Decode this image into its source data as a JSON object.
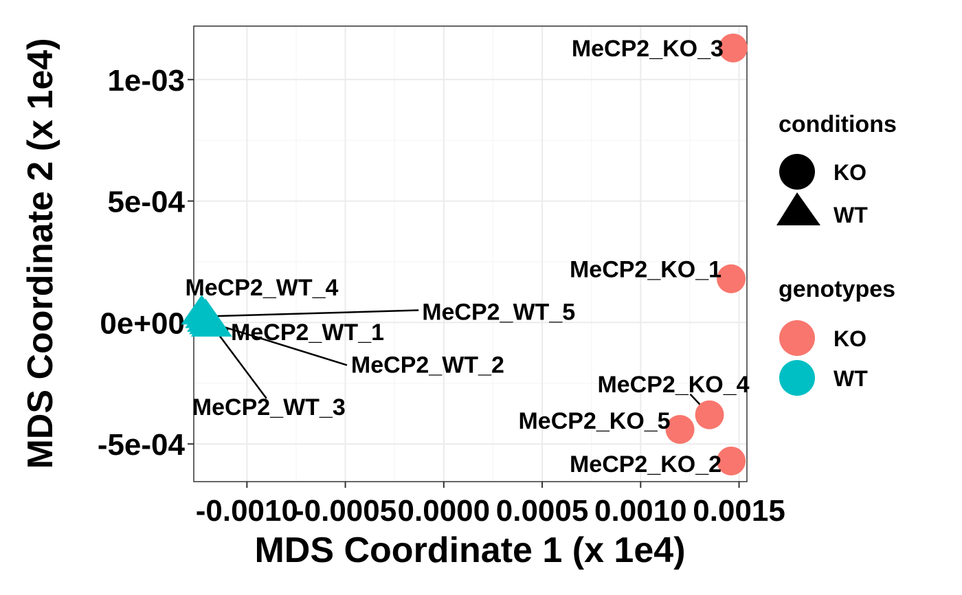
{
  "chart_data": {
    "type": "scatter",
    "xlabel": "MDS Coordinate 1 (x 1e4)",
    "ylabel": "MDS Coordinate 2 (x 1e4)",
    "xlim": [
      -0.00127,
      0.00154
    ],
    "ylim": [
      -0.000655,
      0.00122
    ],
    "x_ticks": [
      {
        "value": -0.001,
        "label": "-0.0010"
      },
      {
        "value": -0.0005,
        "label": "-0.0005"
      },
      {
        "value": 0.0,
        "label": "0.0000"
      },
      {
        "value": 0.0005,
        "label": "0.0005"
      },
      {
        "value": 0.001,
        "label": "0.0010"
      },
      {
        "value": 0.0015,
        "label": "0.0015"
      }
    ],
    "y_ticks": [
      {
        "value": 0.001,
        "label": "1e-03"
      },
      {
        "value": 0.0005,
        "label": "5e-04"
      },
      {
        "value": 0.0,
        "label": "0e+00"
      },
      {
        "value": -0.0005,
        "label": "-5e-04"
      }
    ],
    "grid": true,
    "legend_position": "right",
    "points": [
      {
        "label": "MeCP2_KO_3",
        "x": 0.00147,
        "y": 0.00113,
        "condition": "KO",
        "genotype": "KO"
      },
      {
        "label": "MeCP2_KO_1",
        "x": 0.00146,
        "y": 0.00018,
        "condition": "KO",
        "genotype": "KO"
      },
      {
        "label": "MeCP2_KO_4",
        "x": 0.00135,
        "y": -0.00038,
        "condition": "KO",
        "genotype": "KO"
      },
      {
        "label": "MeCP2_KO_5",
        "x": 0.0012,
        "y": -0.00044,
        "condition": "KO",
        "genotype": "KO"
      },
      {
        "label": "MeCP2_KO_2",
        "x": 0.00146,
        "y": -0.00057,
        "condition": "KO",
        "genotype": "KO"
      },
      {
        "label": "MeCP2_WT_4",
        "x": -0.00123,
        "y": 4e-05,
        "condition": "WT",
        "genotype": "WT"
      },
      {
        "label": "MeCP2_WT_5",
        "x": -0.00121,
        "y": 2.5e-05,
        "condition": "WT",
        "genotype": "WT"
      },
      {
        "label": "MeCP2_WT_1",
        "x": -0.0012,
        "y": 1e-05,
        "condition": "WT",
        "genotype": "WT"
      },
      {
        "label": "MeCP2_WT_2",
        "x": -0.00119,
        "y": 0.0,
        "condition": "WT",
        "genotype": "WT"
      },
      {
        "label": "MeCP2_WT_3",
        "x": -0.00118,
        "y": -1e-05,
        "condition": "WT",
        "genotype": "WT"
      }
    ],
    "legends": {
      "conditions": {
        "title": "conditions",
        "items": [
          {
            "label": "KO",
            "shape": "circle"
          },
          {
            "label": "WT",
            "shape": "triangle"
          }
        ]
      },
      "genotypes": {
        "title": "genotypes",
        "items": [
          {
            "label": "KO",
            "color": "#F8766D"
          },
          {
            "label": "WT",
            "color": "#00BFC4"
          }
        ]
      }
    },
    "colors": {
      "KO": "#F8766D",
      "WT": "#00BFC4"
    }
  }
}
